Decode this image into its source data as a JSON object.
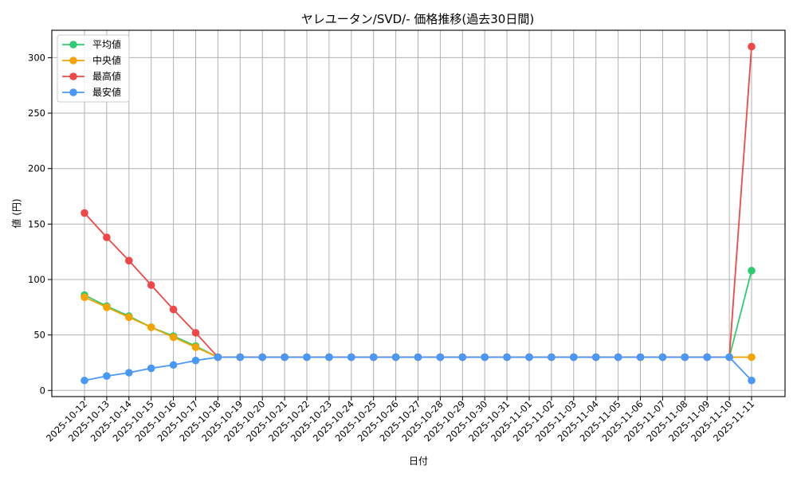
{
  "chart_data": {
    "type": "line",
    "title": "ヤレユータン/SVD/- 価格推移(過去30日間)",
    "xlabel": "日付",
    "ylabel": "値 (円)",
    "ylim": [
      -5,
      325
    ],
    "yticks": [
      0,
      50,
      100,
      150,
      200,
      250,
      300
    ],
    "grid": true,
    "legend_position": "upper left",
    "categories": [
      "2025-10-12",
      "2025-10-13",
      "2025-10-14",
      "2025-10-15",
      "2025-10-16",
      "2025-10-17",
      "2025-10-18",
      "2025-10-19",
      "2025-10-20",
      "2025-10-21",
      "2025-10-22",
      "2025-10-23",
      "2025-10-24",
      "2025-10-25",
      "2025-10-26",
      "2025-10-27",
      "2025-10-28",
      "2025-10-29",
      "2025-10-30",
      "2025-10-31",
      "2025-11-01",
      "2025-11-02",
      "2025-11-03",
      "2025-11-04",
      "2025-11-05",
      "2025-11-06",
      "2025-11-07",
      "2025-11-08",
      "2025-11-09",
      "2025-11-10",
      "2025-11-11"
    ],
    "series": [
      {
        "name": "平均値",
        "color": "#2ecc71",
        "values": [
          86,
          76,
          67,
          57,
          49,
          40,
          30,
          30,
          30,
          30,
          30,
          30,
          30,
          30,
          30,
          30,
          30,
          30,
          30,
          30,
          30,
          30,
          30,
          30,
          30,
          30,
          30,
          30,
          30,
          30,
          108
        ]
      },
      {
        "name": "中央値",
        "color": "#f5a300",
        "values": [
          84,
          75,
          66,
          57,
          48,
          39,
          30,
          30,
          30,
          30,
          30,
          30,
          30,
          30,
          30,
          30,
          30,
          30,
          30,
          30,
          30,
          30,
          30,
          30,
          30,
          30,
          30,
          30,
          30,
          30,
          30
        ]
      },
      {
        "name": "最高値",
        "color": "#f04848",
        "values": [
          160,
          138,
          117,
          95,
          73,
          52,
          30,
          30,
          30,
          30,
          30,
          30,
          30,
          30,
          30,
          30,
          30,
          30,
          30,
          30,
          30,
          30,
          30,
          30,
          30,
          30,
          30,
          30,
          30,
          30,
          310
        ]
      },
      {
        "name": "最安値",
        "color": "#4a98f5",
        "values": [
          9,
          13,
          16,
          20,
          23,
          27,
          30,
          30,
          30,
          30,
          30,
          30,
          30,
          30,
          30,
          30,
          30,
          30,
          30,
          30,
          30,
          30,
          30,
          30,
          30,
          30,
          30,
          30,
          30,
          30,
          9
        ]
      }
    ]
  }
}
